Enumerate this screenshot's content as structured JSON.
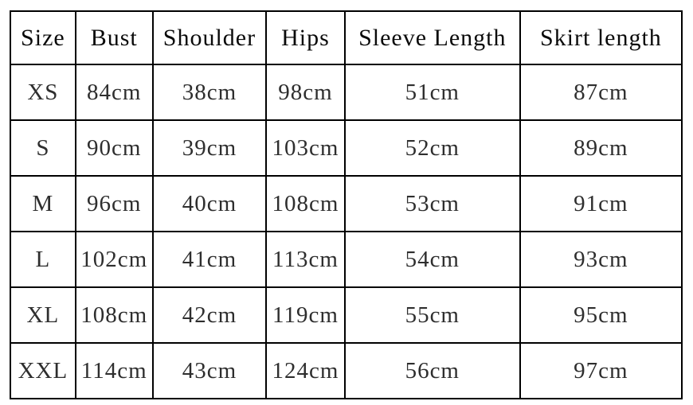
{
  "colors": {
    "background": "#ffffff",
    "border": "#000000",
    "header_text": "#0a0a0a",
    "cell_text": "#2e2e2e"
  },
  "table": {
    "headers": [
      "Size",
      "Bust",
      "Shoulder",
      "Hips",
      "Sleeve Length",
      "Skirt length"
    ],
    "rows": [
      [
        "XS",
        "84cm",
        "38cm",
        "98cm",
        "51cm",
        "87cm"
      ],
      [
        "S",
        "90cm",
        "39cm",
        "103cm",
        "52cm",
        "89cm"
      ],
      [
        "M",
        "96cm",
        "40cm",
        "108cm",
        "53cm",
        "91cm"
      ],
      [
        "L",
        "102cm",
        "41cm",
        "113cm",
        "54cm",
        "93cm"
      ],
      [
        "XL",
        "108cm",
        "42cm",
        "119cm",
        "55cm",
        "95cm"
      ],
      [
        "XXL",
        "114cm",
        "43cm",
        "124cm",
        "56cm",
        "97cm"
      ]
    ]
  },
  "chart_data": {
    "type": "table",
    "title": "",
    "columns": [
      "Size",
      "Bust",
      "Shoulder",
      "Hips",
      "Sleeve Length",
      "Skirt length"
    ],
    "units": "cm",
    "sizes": [
      "XS",
      "S",
      "M",
      "L",
      "XL",
      "XXL"
    ],
    "series": [
      {
        "name": "Bust",
        "values": [
          84,
          90,
          96,
          102,
          108,
          114
        ]
      },
      {
        "name": "Shoulder",
        "values": [
          38,
          39,
          40,
          41,
          42,
          43
        ]
      },
      {
        "name": "Hips",
        "values": [
          98,
          103,
          108,
          113,
          119,
          124
        ]
      },
      {
        "name": "Sleeve Length",
        "values": [
          51,
          52,
          53,
          54,
          55,
          56
        ]
      },
      {
        "name": "Skirt length",
        "values": [
          87,
          89,
          91,
          93,
          95,
          97
        ]
      }
    ]
  }
}
